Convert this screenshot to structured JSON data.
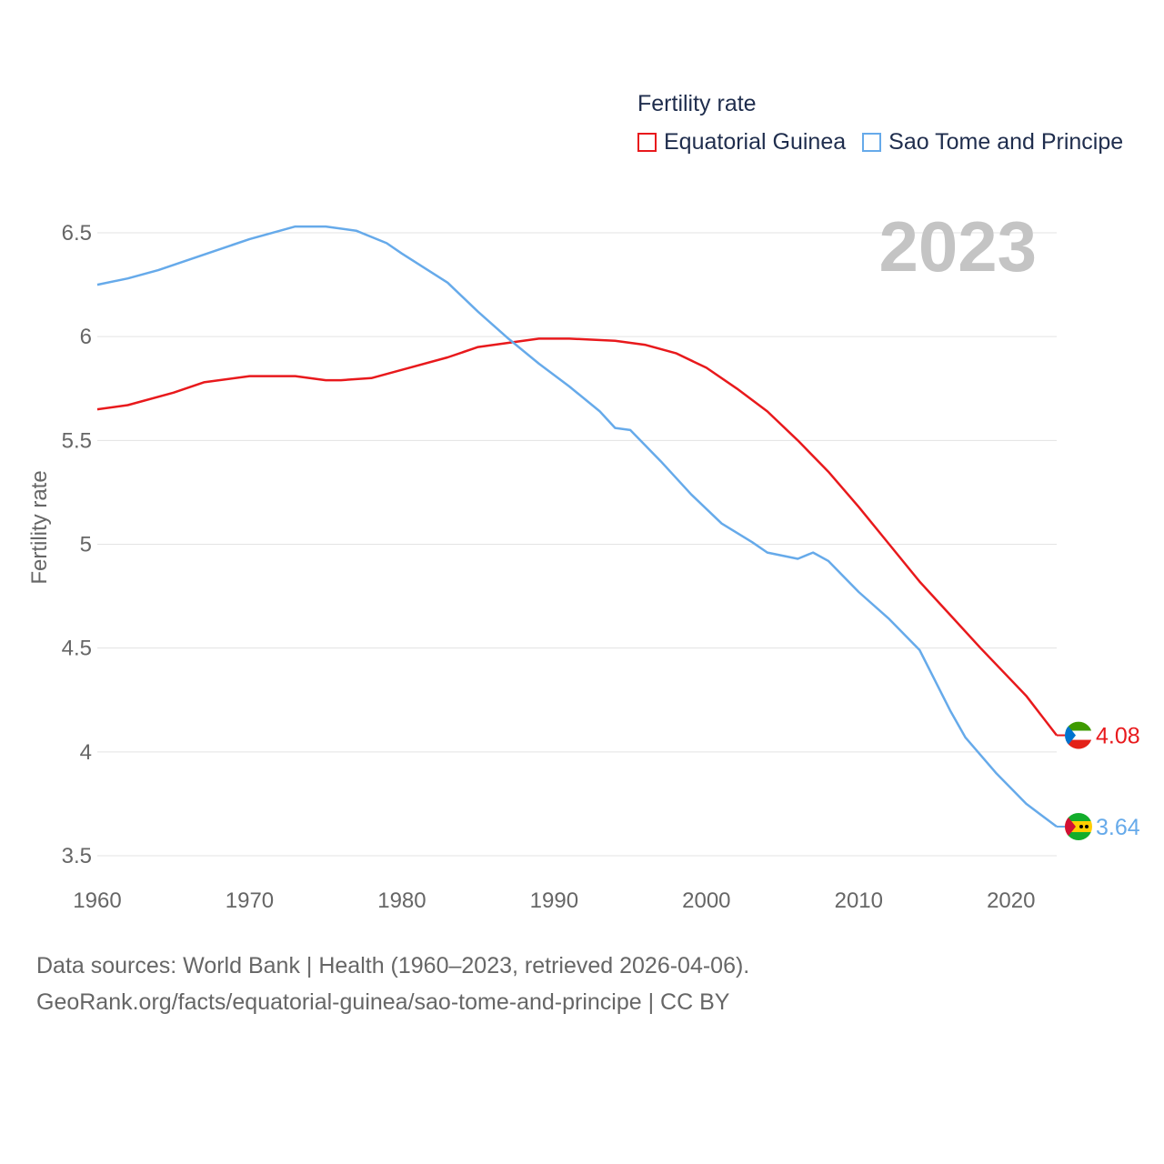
{
  "legend": {
    "title": "Fertility rate",
    "items": [
      {
        "label": "Equatorial Guinea",
        "color": "#e8191c"
      },
      {
        "label": "Sao Tome and Principe",
        "color": "#66aaea"
      }
    ]
  },
  "big_year": "2023",
  "footer": {
    "line1": "Data sources: World Bank | Health (1960–2023, retrieved 2026-04-06).",
    "line2": "GeoRank.org/facts/equatorial-guinea/sao-tome-and-principe | CC BY"
  },
  "chart_data": {
    "type": "line",
    "title": "Fertility rate",
    "xlabel": "",
    "ylabel": "Fertility rate",
    "xlim": [
      1960,
      2023
    ],
    "ylim": [
      3.45,
      6.7
    ],
    "grid": true,
    "legend_position": "top-right",
    "xticks": [
      1960,
      1970,
      1980,
      1990,
      2000,
      2010,
      2020
    ],
    "yticks": [
      3.5,
      4,
      4.5,
      5,
      5.5,
      6,
      6.5
    ],
    "ytick_labels": [
      "3.5",
      "4",
      "4.5",
      "5",
      "5.5",
      "6",
      "6.5"
    ],
    "series": [
      {
        "name": "Equatorial Guinea",
        "color": "#e8191c",
        "end_label": "4.08",
        "points": [
          [
            1960,
            5.65
          ],
          [
            1962,
            5.67
          ],
          [
            1965,
            5.73
          ],
          [
            1967,
            5.78
          ],
          [
            1970,
            5.81
          ],
          [
            1973,
            5.81
          ],
          [
            1975,
            5.79
          ],
          [
            1976,
            5.79
          ],
          [
            1978,
            5.8
          ],
          [
            1980,
            5.84
          ],
          [
            1983,
            5.9
          ],
          [
            1985,
            5.95
          ],
          [
            1987,
            5.97
          ],
          [
            1989,
            5.99
          ],
          [
            1991,
            5.99
          ],
          [
            1994,
            5.98
          ],
          [
            1996,
            5.96
          ],
          [
            1998,
            5.92
          ],
          [
            2000,
            5.85
          ],
          [
            2002,
            5.75
          ],
          [
            2004,
            5.64
          ],
          [
            2006,
            5.5
          ],
          [
            2008,
            5.35
          ],
          [
            2010,
            5.18
          ],
          [
            2012,
            5.0
          ],
          [
            2014,
            4.82
          ],
          [
            2016,
            4.66
          ],
          [
            2018,
            4.5
          ],
          [
            2021,
            4.27
          ],
          [
            2023,
            4.08
          ]
        ]
      },
      {
        "name": "Sao Tome and Principe",
        "color": "#66aaea",
        "end_label": "3.64",
        "points": [
          [
            1960,
            6.25
          ],
          [
            1962,
            6.28
          ],
          [
            1964,
            6.32
          ],
          [
            1966,
            6.37
          ],
          [
            1968,
            6.42
          ],
          [
            1970,
            6.47
          ],
          [
            1972,
            6.51
          ],
          [
            1973,
            6.53
          ],
          [
            1975,
            6.53
          ],
          [
            1977,
            6.51
          ],
          [
            1979,
            6.45
          ],
          [
            1980,
            6.4
          ],
          [
            1983,
            6.26
          ],
          [
            1985,
            6.12
          ],
          [
            1987,
            5.99
          ],
          [
            1989,
            5.87
          ],
          [
            1991,
            5.76
          ],
          [
            1993,
            5.64
          ],
          [
            1994,
            5.56
          ],
          [
            1995,
            5.55
          ],
          [
            1997,
            5.4
          ],
          [
            1999,
            5.24
          ],
          [
            2001,
            5.1
          ],
          [
            2003,
            5.01
          ],
          [
            2004,
            4.96
          ],
          [
            2006,
            4.93
          ],
          [
            2007,
            4.96
          ],
          [
            2008,
            4.92
          ],
          [
            2010,
            4.77
          ],
          [
            2012,
            4.64
          ],
          [
            2014,
            4.49
          ],
          [
            2016,
            4.2
          ],
          [
            2017,
            4.07
          ],
          [
            2019,
            3.9
          ],
          [
            2021,
            3.75
          ],
          [
            2023,
            3.64
          ]
        ]
      }
    ]
  }
}
